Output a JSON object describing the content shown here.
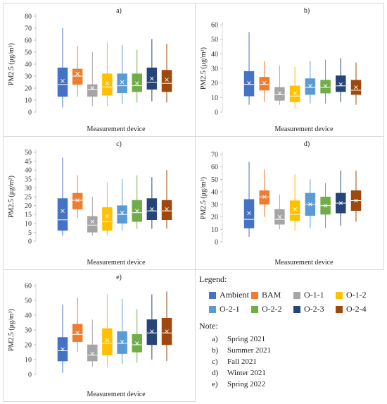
{
  "legend": {
    "title": "Legend:",
    "items": [
      {
        "label": "Ambient",
        "color": "#4472c4"
      },
      {
        "label": "BAM",
        "color": "#ed7d31"
      },
      {
        "label": "O-1-1",
        "color": "#a5a5a5"
      },
      {
        "label": "O-1-2",
        "color": "#ffc000"
      },
      {
        "label": "O-2-1",
        "color": "#5b9bd5"
      },
      {
        "label": "O-2-2",
        "color": "#70ad47"
      },
      {
        "label": "O-2-3",
        "color": "#264478"
      },
      {
        "label": "O-2-4",
        "color": "#9e480e"
      }
    ]
  },
  "note": {
    "title": "Note:",
    "items": [
      {
        "key": "a)",
        "text": "Spring 2021"
      },
      {
        "key": "b)",
        "text": "Summer 2021"
      },
      {
        "key": "c)",
        "text": "Fall 2021"
      },
      {
        "key": "d)",
        "text": "Winter 2021"
      },
      {
        "key": "e)",
        "text": "Spring 2022"
      }
    ]
  },
  "chart_data": [
    {
      "type": "box",
      "title": "a)",
      "xlabel": "Measurement device",
      "ylabel": "PM2.5 (μg/m³)",
      "ylim": [
        0,
        80
      ],
      "yticks": [
        0,
        10,
        20,
        30,
        40,
        50,
        60,
        70,
        80
      ],
      "series": [
        {
          "name": "Ambient",
          "min": 4,
          "q1": 13,
          "median": 23,
          "q3": 37,
          "max": 70,
          "mean": 26
        },
        {
          "name": "BAM",
          "min": 13,
          "q1": 23,
          "median": 30,
          "q3": 36,
          "max": 55,
          "mean": 32
        },
        {
          "name": "O-1-1",
          "min": 5,
          "q1": 13,
          "median": 19,
          "q3": 23,
          "max": 50,
          "mean": 20
        },
        {
          "name": "O-1-2",
          "min": 5,
          "q1": 14,
          "median": 21,
          "q3": 32,
          "max": 58,
          "mean": 24
        },
        {
          "name": "O-2-1",
          "min": 7,
          "q1": 16,
          "median": 22,
          "q3": 32,
          "max": 56,
          "mean": 25
        },
        {
          "name": "O-2-2",
          "min": 8,
          "q1": 17,
          "median": 22,
          "q3": 32,
          "max": 52,
          "mean": 24
        },
        {
          "name": "O-2-3",
          "min": 9,
          "q1": 19,
          "median": 25,
          "q3": 37,
          "max": 61,
          "mean": 28
        },
        {
          "name": "O-2-4",
          "min": 8,
          "q1": 17,
          "median": 24,
          "q3": 35,
          "max": 57,
          "mean": 27
        }
      ]
    },
    {
      "type": "box",
      "title": "b)",
      "xlabel": "Measurement device",
      "ylabel": "PM2.5 (μg/m³)",
      "ylim": [
        0,
        60
      ],
      "yticks": [
        0,
        10,
        20,
        30,
        40,
        50,
        60
      ],
      "series": [
        {
          "name": "Ambient",
          "min": 5,
          "q1": 11,
          "median": 19,
          "q3": 28,
          "max": 55,
          "mean": 20
        },
        {
          "name": "BAM",
          "min": 7,
          "q1": 15,
          "median": 19,
          "q3": 24,
          "max": 35,
          "mean": 20
        },
        {
          "name": "O-1-1",
          "min": 5,
          "q1": 8,
          "median": 12,
          "q3": 17,
          "max": 32,
          "mean": 13
        },
        {
          "name": "O-1-2",
          "min": 3,
          "q1": 7,
          "median": 11,
          "q3": 18,
          "max": 31,
          "mean": 13
        },
        {
          "name": "O-2-1",
          "min": 6,
          "q1": 12,
          "median": 17,
          "q3": 23,
          "max": 35,
          "mean": 18
        },
        {
          "name": "O-2-2",
          "min": 6,
          "q1": 13,
          "median": 17,
          "q3": 22,
          "max": 36,
          "mean": 18
        },
        {
          "name": "O-2-3",
          "min": 7,
          "q1": 14,
          "median": 18,
          "q3": 25,
          "max": 37,
          "mean": 19
        },
        {
          "name": "O-2-4",
          "min": 5,
          "q1": 12,
          "median": 15,
          "q3": 22,
          "max": 34,
          "mean": 17
        }
      ]
    },
    {
      "type": "box",
      "title": "c)",
      "xlabel": "Measurement device",
      "ylabel": "PM2.5 (μg/m³)",
      "ylim": [
        0,
        50
      ],
      "yticks": [
        0,
        5,
        10,
        15,
        20,
        25,
        30,
        35,
        40,
        45,
        50
      ],
      "series": [
        {
          "name": "Ambient",
          "min": 3,
          "q1": 6,
          "median": 12,
          "q3": 24,
          "max": 47,
          "mean": 17
        },
        {
          "name": "BAM",
          "min": 13,
          "q1": 18,
          "median": 23,
          "q3": 27,
          "max": 37,
          "mean": 23
        },
        {
          "name": "O-1-1",
          "min": 3,
          "q1": 5,
          "median": 9,
          "q3": 14,
          "max": 25,
          "mean": 11
        },
        {
          "name": "O-1-2",
          "min": 3,
          "q1": 6,
          "median": 11,
          "q3": 19,
          "max": 33,
          "mean": 14
        },
        {
          "name": "O-2-1",
          "min": 6,
          "q1": 10,
          "median": 15,
          "q3": 20,
          "max": 35,
          "mean": 16
        },
        {
          "name": "O-2-2",
          "min": 7,
          "q1": 11,
          "median": 16,
          "q3": 23,
          "max": 37,
          "mean": 17
        },
        {
          "name": "O-2-3",
          "min": 7,
          "q1": 12,
          "median": 17,
          "q3": 24,
          "max": 36,
          "mean": 18
        },
        {
          "name": "O-2-4",
          "min": 7,
          "q1": 12,
          "median": 17,
          "q3": 23,
          "max": 40,
          "mean": 18
        }
      ]
    },
    {
      "type": "box",
      "title": "d)",
      "xlabel": "Measurement device",
      "ylabel": "PM2.5 (μg/m³)",
      "ylim": [
        0,
        70
      ],
      "yticks": [
        0,
        10,
        20,
        30,
        40,
        50,
        60,
        70
      ],
      "series": [
        {
          "name": "Ambient",
          "min": 4,
          "q1": 11,
          "median": 18,
          "q3": 34,
          "max": 64,
          "mean": 23
        },
        {
          "name": "BAM",
          "min": 20,
          "q1": 30,
          "median": 36,
          "q3": 41,
          "max": 58,
          "mean": 36
        },
        {
          "name": "O-1-1",
          "min": 10,
          "q1": 14,
          "median": 18,
          "q3": 26,
          "max": 38,
          "mean": 20
        },
        {
          "name": "O-1-2",
          "min": 9,
          "q1": 17,
          "median": 22,
          "q3": 33,
          "max": 54,
          "mean": 26
        },
        {
          "name": "O-2-1",
          "min": 11,
          "q1": 21,
          "median": 30,
          "q3": 39,
          "max": 50,
          "mean": 30
        },
        {
          "name": "O-2-2",
          "min": 11,
          "q1": 22,
          "median": 29,
          "q3": 36,
          "max": 47,
          "mean": 29
        },
        {
          "name": "O-2-3",
          "min": 13,
          "q1": 23,
          "median": 31,
          "q3": 39,
          "max": 57,
          "mean": 31
        },
        {
          "name": "O-2-4",
          "min": 16,
          "q1": 25,
          "median": 33,
          "q3": 41,
          "max": 57,
          "mean": 33
        }
      ]
    },
    {
      "type": "box",
      "title": "e)",
      "xlabel": "Measurement device",
      "ylabel": "PM2.5 (μg/m³)",
      "ylim": [
        0,
        60
      ],
      "yticks": [
        0,
        10,
        20,
        30,
        40,
        50,
        60
      ],
      "series": [
        {
          "name": "Ambient",
          "min": 1,
          "q1": 9,
          "median": 16,
          "q3": 25,
          "max": 47,
          "mean": 17
        },
        {
          "name": "BAM",
          "min": 15,
          "q1": 22,
          "median": 27,
          "q3": 34,
          "max": 52,
          "mean": 28
        },
        {
          "name": "O-1-1",
          "min": 5,
          "q1": 9,
          "median": 13,
          "q3": 20,
          "max": 37,
          "mean": 14
        },
        {
          "name": "O-1-2",
          "min": 5,
          "q1": 13,
          "median": 21,
          "q3": 31,
          "max": 54,
          "mean": 23
        },
        {
          "name": "O-2-1",
          "min": 7,
          "q1": 14,
          "median": 21,
          "q3": 29,
          "max": 51,
          "mean": 22
        },
        {
          "name": "O-2-2",
          "min": 8,
          "q1": 15,
          "median": 20,
          "q3": 27,
          "max": 44,
          "mean": 21
        },
        {
          "name": "O-2-3",
          "min": 10,
          "q1": 20,
          "median": 28,
          "q3": 37,
          "max": 54,
          "mean": 29
        },
        {
          "name": "O-2-4",
          "min": 9,
          "q1": 20,
          "median": 28,
          "q3": 38,
          "max": 56,
          "mean": 29
        }
      ]
    }
  ]
}
